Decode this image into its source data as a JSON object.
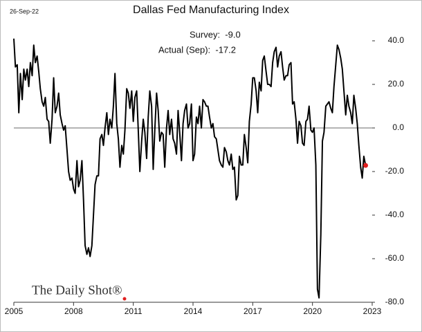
{
  "chart_data": {
    "type": "line",
    "title": "Dallas Fed Manufacturing Index",
    "date_label": "26-Sep-22",
    "annotations": [
      "Survey:  -9.0",
      "Actual (Sep):  -17.2"
    ],
    "watermark": "The Daily Shot®",
    "xlim": [
      2005,
      2023
    ],
    "xticks": [
      2005,
      2008,
      2011,
      2014,
      2017,
      2020,
      2023
    ],
    "ylim": [
      -80,
      40
    ],
    "yticks": [
      {
        "value": 40,
        "label": "40.0"
      },
      {
        "value": 20,
        "label": "20.0"
      },
      {
        "value": 0,
        "label": "0.0"
      },
      {
        "value": -20,
        "label": "-20.0"
      },
      {
        "value": -40,
        "label": "-40.0"
      },
      {
        "value": -60,
        "label": "-60.0"
      },
      {
        "value": -80,
        "label": "-80.0"
      }
    ],
    "zero_line_color": "#888888",
    "last_point_color": "#e02020",
    "x": [
      2005.0,
      2005.08,
      2005.17,
      2005.25,
      2005.33,
      2005.42,
      2005.5,
      2005.58,
      2005.67,
      2005.75,
      2005.83,
      2005.92,
      2006.0,
      2006.08,
      2006.17,
      2006.25,
      2006.33,
      2006.42,
      2006.5,
      2006.58,
      2006.67,
      2006.75,
      2006.83,
      2006.92,
      2007.0,
      2007.08,
      2007.17,
      2007.25,
      2007.33,
      2007.42,
      2007.5,
      2007.58,
      2007.67,
      2007.75,
      2007.83,
      2007.92,
      2008.0,
      2008.08,
      2008.17,
      2008.25,
      2008.33,
      2008.42,
      2008.5,
      2008.58,
      2008.67,
      2008.75,
      2008.83,
      2008.92,
      2009.0,
      2009.08,
      2009.17,
      2009.25,
      2009.33,
      2009.42,
      2009.5,
      2009.58,
      2009.67,
      2009.75,
      2009.83,
      2009.92,
      2010.0,
      2010.08,
      2010.17,
      2010.25,
      2010.33,
      2010.42,
      2010.5,
      2010.58,
      2010.67,
      2010.75,
      2010.83,
      2010.92,
      2011.0,
      2011.08,
      2011.17,
      2011.25,
      2011.33,
      2011.42,
      2011.5,
      2011.58,
      2011.67,
      2011.75,
      2011.83,
      2011.92,
      2012.0,
      2012.08,
      2012.17,
      2012.25,
      2012.33,
      2012.42,
      2012.5,
      2012.58,
      2012.67,
      2012.75,
      2012.83,
      2012.92,
      2013.0,
      2013.08,
      2013.17,
      2013.25,
      2013.33,
      2013.42,
      2013.5,
      2013.58,
      2013.67,
      2013.75,
      2013.83,
      2013.92,
      2014.0,
      2014.08,
      2014.17,
      2014.25,
      2014.33,
      2014.42,
      2014.5,
      2014.58,
      2014.67,
      2014.75,
      2014.83,
      2014.92,
      2015.0,
      2015.08,
      2015.17,
      2015.25,
      2015.33,
      2015.42,
      2015.5,
      2015.58,
      2015.67,
      2015.75,
      2015.83,
      2015.92,
      2016.0,
      2016.08,
      2016.17,
      2016.25,
      2016.33,
      2016.42,
      2016.5,
      2016.58,
      2016.67,
      2016.75,
      2016.83,
      2016.92,
      2017.0,
      2017.08,
      2017.17,
      2017.25,
      2017.33,
      2017.42,
      2017.5,
      2017.58,
      2017.67,
      2017.75,
      2017.83,
      2017.92,
      2018.0,
      2018.08,
      2018.17,
      2018.25,
      2018.33,
      2018.42,
      2018.5,
      2018.58,
      2018.67,
      2018.75,
      2018.83,
      2018.92,
      2019.0,
      2019.08,
      2019.17,
      2019.25,
      2019.33,
      2019.42,
      2019.5,
      2019.58,
      2019.67,
      2019.75,
      2019.83,
      2019.92,
      2020.0,
      2020.08,
      2020.17,
      2020.25,
      2020.33,
      2020.42,
      2020.5,
      2020.58,
      2020.67,
      2020.75,
      2020.83,
      2020.92,
      2021.0,
      2021.08,
      2021.17,
      2021.25,
      2021.33,
      2021.42,
      2021.5,
      2021.58,
      2021.67,
      2021.75,
      2021.83,
      2021.92,
      2022.0,
      2022.08,
      2022.17,
      2022.25,
      2022.33,
      2022.42,
      2022.5,
      2022.58,
      2022.67
    ],
    "series": [
      {
        "color": "#000000",
        "values": [
          41,
          28,
          29,
          7,
          25,
          13,
          27,
          22,
          27,
          19,
          30,
          24,
          38,
          30,
          33,
          26,
          18,
          12,
          10,
          14,
          4,
          3,
          -7,
          4,
          23,
          7,
          10,
          16,
          6,
          2,
          -1,
          1,
          -10,
          -20,
          -24,
          -23,
          -28,
          -30,
          -15,
          -27,
          -24,
          -15,
          -33,
          -54,
          -58,
          -55,
          -59,
          -54,
          -40,
          -26,
          -22,
          -22,
          -5,
          -3,
          -8,
          0,
          7,
          -3,
          4,
          0,
          10,
          25,
          2,
          -5,
          -18,
          -8,
          -12,
          -1,
          18,
          16,
          9,
          17,
          3,
          14,
          17,
          -1,
          -20,
          -6,
          4,
          -2,
          -14,
          5,
          17,
          10,
          -19,
          -1,
          16,
          8,
          -6,
          -2,
          -3,
          -18,
          0,
          8,
          -3,
          4,
          -5,
          -7,
          -12,
          8,
          -2,
          -15,
          2,
          8,
          11,
          0,
          2,
          11,
          -15,
          -12,
          5,
          2,
          10,
          0,
          13,
          12,
          10,
          10,
          5,
          0,
          2,
          -4,
          -5,
          -10,
          -15,
          -17,
          -18,
          -9,
          -11,
          -15,
          -17,
          -12,
          -19,
          -18,
          -33,
          -31,
          -13,
          -17,
          -17,
          -3,
          -9,
          -16,
          3,
          11,
          23,
          23,
          17,
          7,
          21,
          17,
          31,
          33,
          26,
          20,
          20,
          19,
          30,
          35,
          37,
          28,
          33,
          35,
          28,
          22,
          24,
          24,
          29,
          30,
          11,
          12,
          4,
          -7,
          3,
          1,
          -7,
          -8,
          3,
          4,
          10,
          -1,
          -2,
          0,
          -17,
          -74,
          -78,
          -49,
          -6,
          -2,
          10,
          11,
          12,
          9,
          7,
          19,
          29,
          38,
          36,
          32,
          27,
          17,
          6,
          15,
          10,
          7,
          2,
          15,
          9,
          2,
          -8,
          -18,
          -23,
          -13,
          -17.2
        ]
      }
    ]
  }
}
